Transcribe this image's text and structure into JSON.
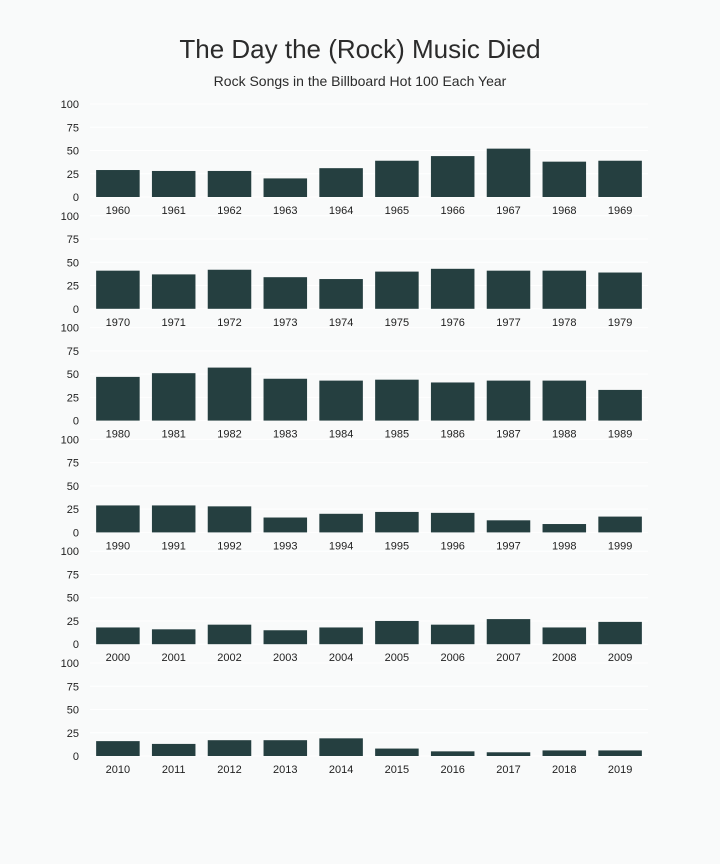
{
  "chart_data": {
    "type": "bar",
    "title": "The Day the (Rock) Music Died",
    "subtitle": "Rock Songs in the Billboard Hot 100 Each Year",
    "xlabel": "",
    "ylabel": "",
    "ylim": [
      0,
      100
    ],
    "yticks": [
      0,
      25,
      50,
      75,
      100
    ],
    "grid": true,
    "bar_color": "#253f40",
    "background_color": "#f9fafa",
    "panels": [
      {
        "categories": [
          "1960",
          "1961",
          "1962",
          "1963",
          "1964",
          "1965",
          "1966",
          "1967",
          "1968",
          "1969"
        ],
        "values": [
          29,
          28,
          28,
          20,
          31,
          39,
          44,
          52,
          38,
          39
        ]
      },
      {
        "categories": [
          "1970",
          "1971",
          "1972",
          "1973",
          "1974",
          "1975",
          "1976",
          "1977",
          "1978",
          "1979"
        ],
        "values": [
          41,
          37,
          42,
          34,
          32,
          40,
          43,
          41,
          41,
          39
        ]
      },
      {
        "categories": [
          "1980",
          "1981",
          "1982",
          "1983",
          "1984",
          "1985",
          "1986",
          "1987",
          "1988",
          "1989"
        ],
        "values": [
          47,
          51,
          57,
          45,
          43,
          44,
          41,
          43,
          43,
          33
        ]
      },
      {
        "categories": [
          "1990",
          "1991",
          "1992",
          "1993",
          "1994",
          "1995",
          "1996",
          "1997",
          "1998",
          "1999"
        ],
        "values": [
          29,
          29,
          28,
          16,
          20,
          22,
          21,
          13,
          9,
          17
        ]
      },
      {
        "categories": [
          "2000",
          "2001",
          "2002",
          "2003",
          "2004",
          "2005",
          "2006",
          "2007",
          "2008",
          "2009"
        ],
        "values": [
          18,
          16,
          21,
          15,
          18,
          25,
          21,
          27,
          18,
          24
        ]
      },
      {
        "categories": [
          "2010",
          "2011",
          "2012",
          "2013",
          "2014",
          "2015",
          "2016",
          "2017",
          "2018",
          "2019"
        ],
        "values": [
          16,
          13,
          17,
          17,
          19,
          8,
          5,
          4,
          6,
          6
        ]
      }
    ]
  }
}
